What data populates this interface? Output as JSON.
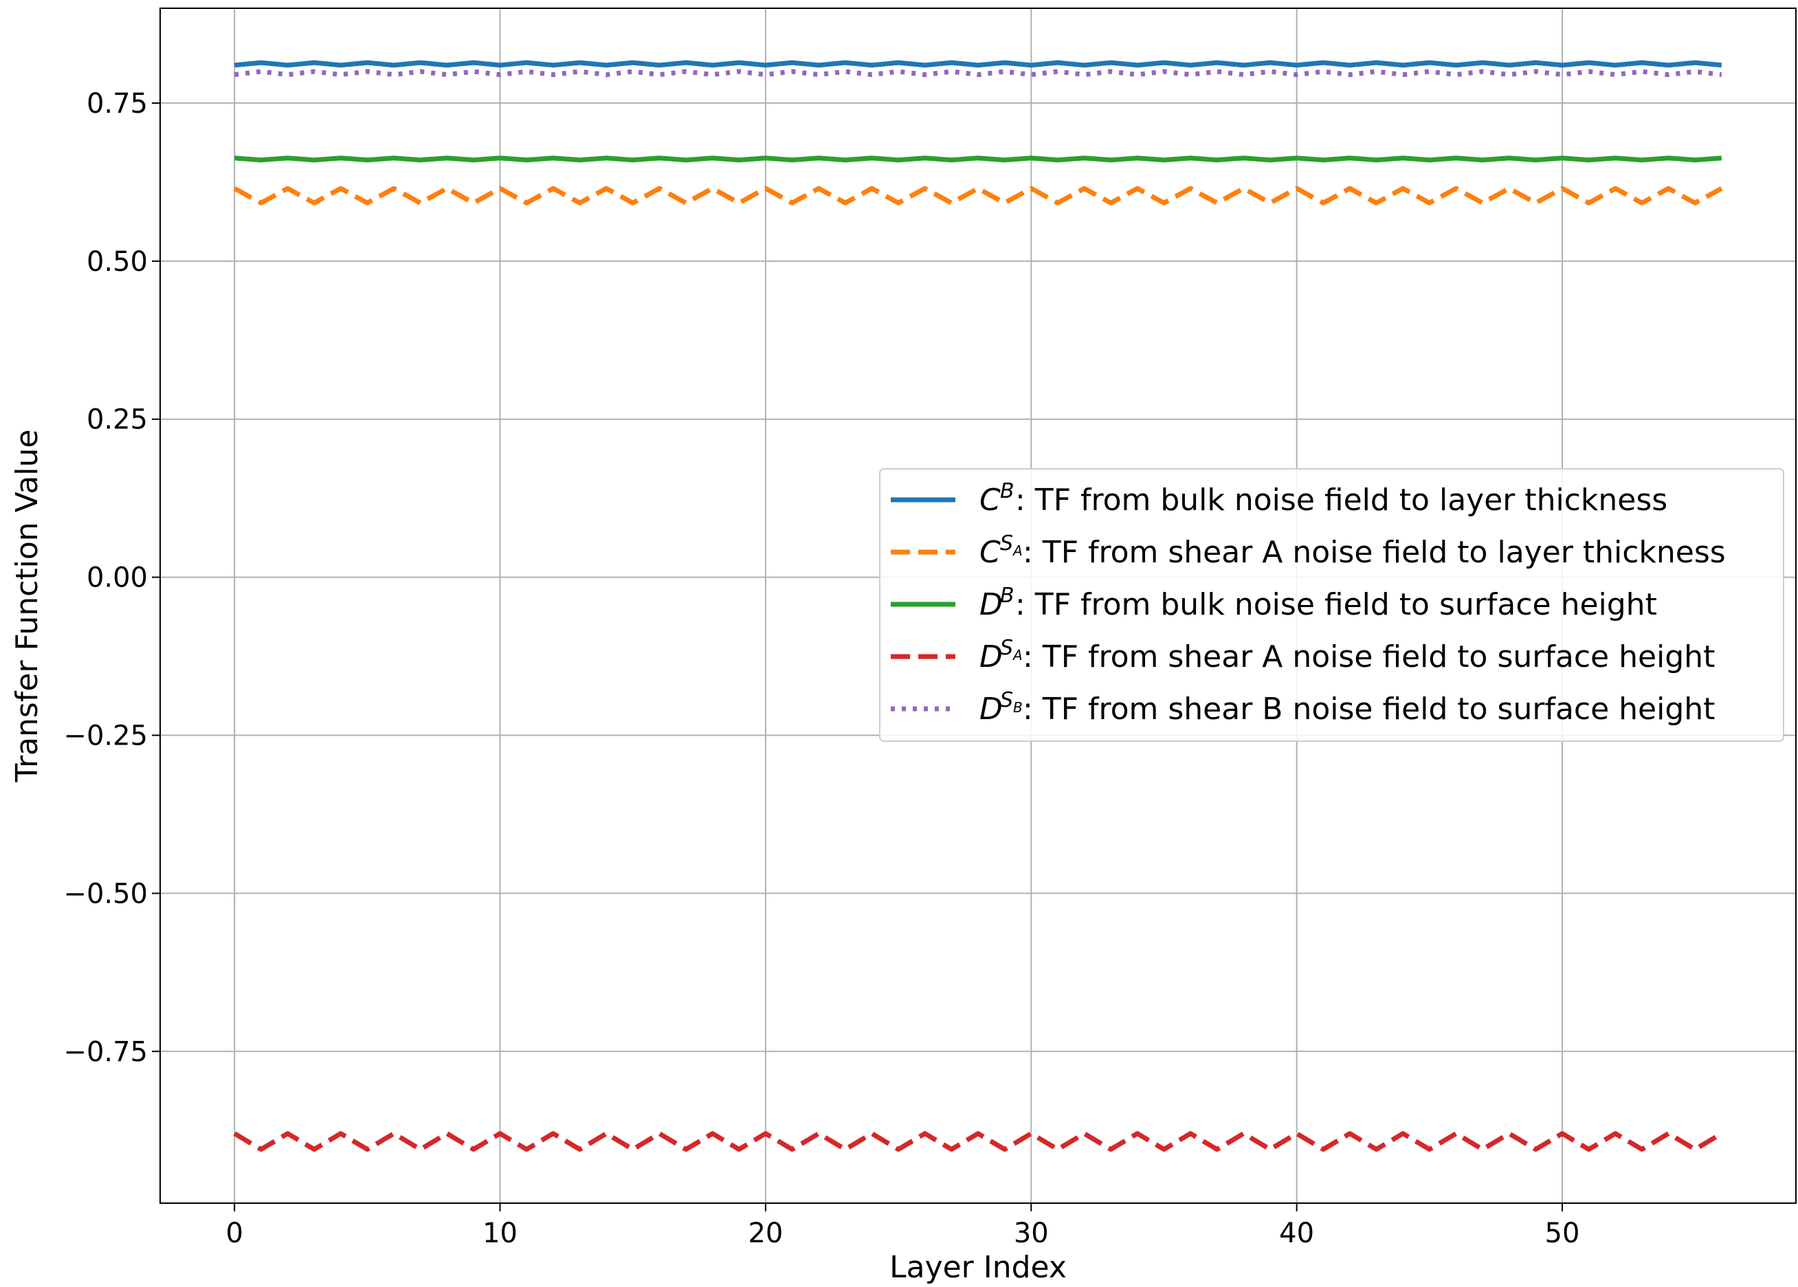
{
  "chart_data": {
    "type": "line",
    "title": "",
    "xlabel": "Layer Index",
    "ylabel": "Transfer Function Value",
    "xlim": [
      -2.8,
      58.8
    ],
    "ylim": [
      -0.99,
      0.9
    ],
    "xticks": [
      0,
      10,
      20,
      30,
      40,
      50
    ],
    "xtick_labels": [
      "0",
      "10",
      "20",
      "30",
      "40",
      "50"
    ],
    "yticks": [
      -0.75,
      -0.5,
      -0.25,
      0.0,
      0.25,
      0.5,
      0.75
    ],
    "ytick_labels": [
      "−0.75",
      "−0.50",
      "−0.25",
      "0.00",
      "0.25",
      "0.50",
      "0.75"
    ],
    "grid": true,
    "legend_position": "center-right",
    "x": {
      "start": 0,
      "end": 56,
      "step": 1
    },
    "series": [
      {
        "symbol": "C",
        "sup": "B",
        "sub": "",
        "name": ": TF from bulk noise field to layer thickness",
        "color": "#1f77b4",
        "dash": "solid",
        "pattern": [
          0.81,
          0.814
        ],
        "pattern_offset": 0
      },
      {
        "symbol": "C",
        "sup": "S",
        "sub": "A",
        "name": ": TF from shear A noise field to layer thickness",
        "color": "#ff7f0e",
        "dash": "dashed",
        "pattern": [
          0.615,
          0.592
        ],
        "pattern_offset": 0
      },
      {
        "symbol": "D",
        "sup": "B",
        "sub": "",
        "name": ": TF from bulk noise field to surface height",
        "color": "#2ca02c",
        "dash": "solid",
        "pattern": [
          0.663,
          0.66
        ],
        "pattern_offset": 0
      },
      {
        "symbol": "D",
        "sup": "S",
        "sub": "A",
        "name": ": TF from shear A noise field to surface height",
        "color": "#d62728",
        "dash": "dashed",
        "pattern": [
          -0.88,
          -0.905
        ],
        "pattern_offset": 0
      },
      {
        "symbol": "D",
        "sup": "S",
        "sub": "B",
        "name": ": TF from shear B noise field to surface height",
        "color": "#9467bd",
        "dash": "dotted",
        "pattern": [
          0.795,
          0.8
        ],
        "pattern_offset": 0
      }
    ]
  }
}
